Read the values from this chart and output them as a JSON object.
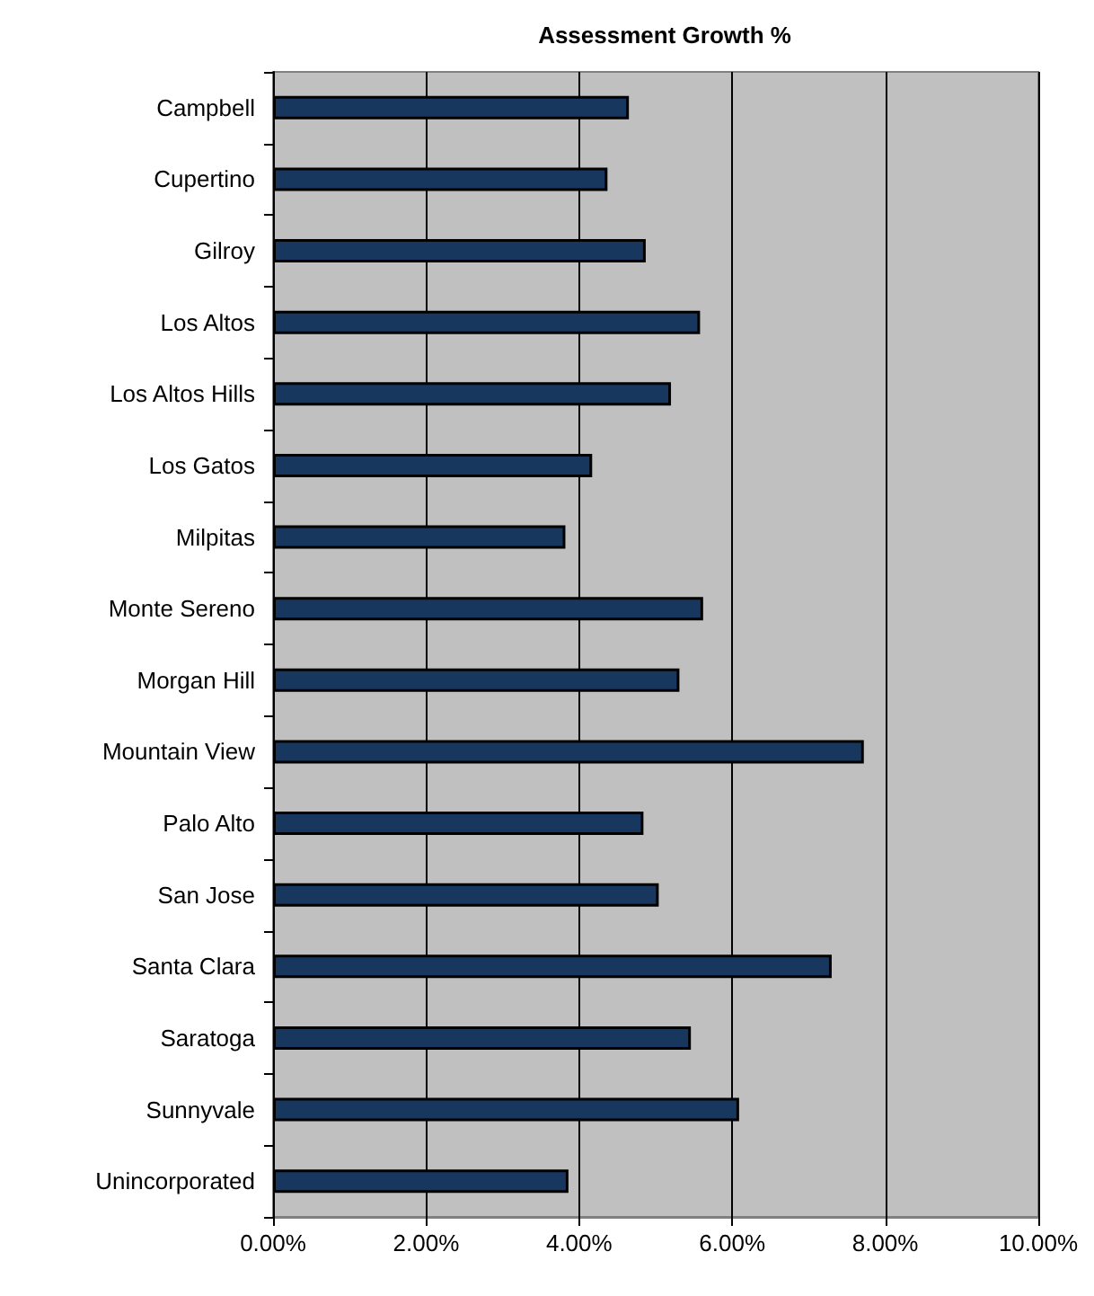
{
  "chart_data": {
    "type": "bar",
    "orientation": "horizontal",
    "title": "Assessment Growth %",
    "categories": [
      "Campbell",
      "Cupertino",
      "Gilroy",
      "Los Altos",
      "Los Altos Hills",
      "Los Gatos",
      "Milpitas",
      "Monte Sereno",
      "Morgan Hill",
      "Mountain View",
      "Palo Alto",
      "San Jose",
      "Santa Clara",
      "Saratoga",
      "Sunnyvale",
      "Unincorporated"
    ],
    "values": [
      4.65,
      4.37,
      4.87,
      5.58,
      5.2,
      4.17,
      3.82,
      5.62,
      5.31,
      7.72,
      4.84,
      5.04,
      7.3,
      5.46,
      6.09,
      3.86
    ],
    "color": "#17375e",
    "xlim": [
      0,
      10
    ],
    "xticks": [
      {
        "value": 0,
        "label": "0.00%"
      },
      {
        "value": 2,
        "label": "2.00%"
      },
      {
        "value": 4,
        "label": "4.00%"
      },
      {
        "value": 6,
        "label": "6.00%"
      },
      {
        "value": 8,
        "label": "8.00%"
      },
      {
        "value": 10,
        "label": "10.00%"
      }
    ],
    "grid": "x"
  }
}
